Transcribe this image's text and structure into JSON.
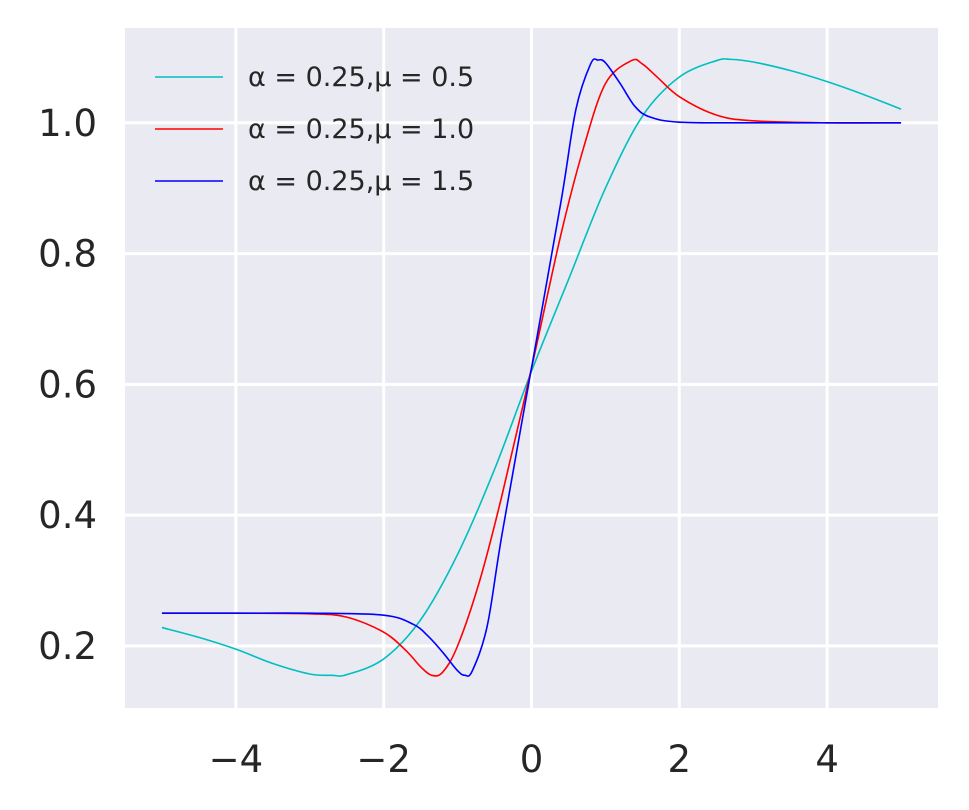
{
  "chart_data": {
    "type": "line",
    "title": "",
    "xlabel": "",
    "ylabel": "",
    "xlim": [
      -5.5,
      5.5
    ],
    "ylim": [
      0.105,
      1.145
    ],
    "xticks": [
      -4,
      -2,
      0,
      2,
      4
    ],
    "xtick_labels": [
      "−4",
      "−2",
      "0",
      "2",
      "4"
    ],
    "yticks": [
      0.2,
      0.4,
      0.6,
      0.8,
      1.0
    ],
    "ytick_labels": [
      "0.2",
      "0.4",
      "0.6",
      "0.8",
      "1.0"
    ],
    "grid": true,
    "background": "#eaeaf2",
    "grid_color": "#ffffff",
    "legend_position": "top-left",
    "series": [
      {
        "name": "α = 0.25,μ = 0.5",
        "color": "#00bfbf",
        "x": [
          -5,
          -4.5,
          -4,
          -3.5,
          -3,
          -2.7,
          -2.5,
          -2,
          -1.5,
          -1,
          -0.5,
          0,
          0.5,
          1,
          1.5,
          2,
          2.5,
          2.7,
          3,
          3.5,
          4,
          4.5,
          5
        ],
        "y": [
          0.228,
          0.213,
          0.195,
          0.173,
          0.157,
          0.155,
          0.156,
          0.18,
          0.24,
          0.34,
          0.47,
          0.62,
          0.76,
          0.9,
          1.01,
          1.07,
          1.095,
          1.097,
          1.093,
          1.08,
          1.063,
          1.043,
          1.021
        ]
      },
      {
        "name": "α = 0.25,μ = 1.0",
        "color": "#ff0000",
        "x": [
          -5,
          -4,
          -3,
          -2.5,
          -2,
          -1.7,
          -1.5,
          -1.35,
          -1.2,
          -1,
          -0.7,
          -0.4,
          0,
          0.4,
          0.7,
          1,
          1.35,
          1.5,
          1.7,
          2,
          2.5,
          3,
          4,
          5
        ],
        "y": [
          0.25,
          0.25,
          0.249,
          0.244,
          0.221,
          0.193,
          0.168,
          0.155,
          0.16,
          0.2,
          0.3,
          0.43,
          0.625,
          0.83,
          0.96,
          1.06,
          1.095,
          1.09,
          1.07,
          1.04,
          1.012,
          1.003,
          1.0,
          1.0
        ]
      },
      {
        "name": "α = 0.25,μ = 1.5",
        "color": "#0000ff",
        "x": [
          -5,
          -4,
          -3,
          -2,
          -1.6,
          -1.4,
          -1.2,
          -1,
          -0.9,
          -0.8,
          -0.6,
          -0.4,
          0,
          0.4,
          0.6,
          0.8,
          0.9,
          1,
          1.2,
          1.4,
          1.6,
          2,
          3,
          5
        ],
        "y": [
          0.25,
          0.25,
          0.25,
          0.247,
          0.233,
          0.215,
          0.19,
          0.162,
          0.155,
          0.162,
          0.23,
          0.37,
          0.625,
          0.88,
          1.02,
          1.09,
          1.096,
          1.092,
          1.06,
          1.025,
          1.009,
          1.001,
          1.0,
          1.0
        ]
      }
    ]
  }
}
